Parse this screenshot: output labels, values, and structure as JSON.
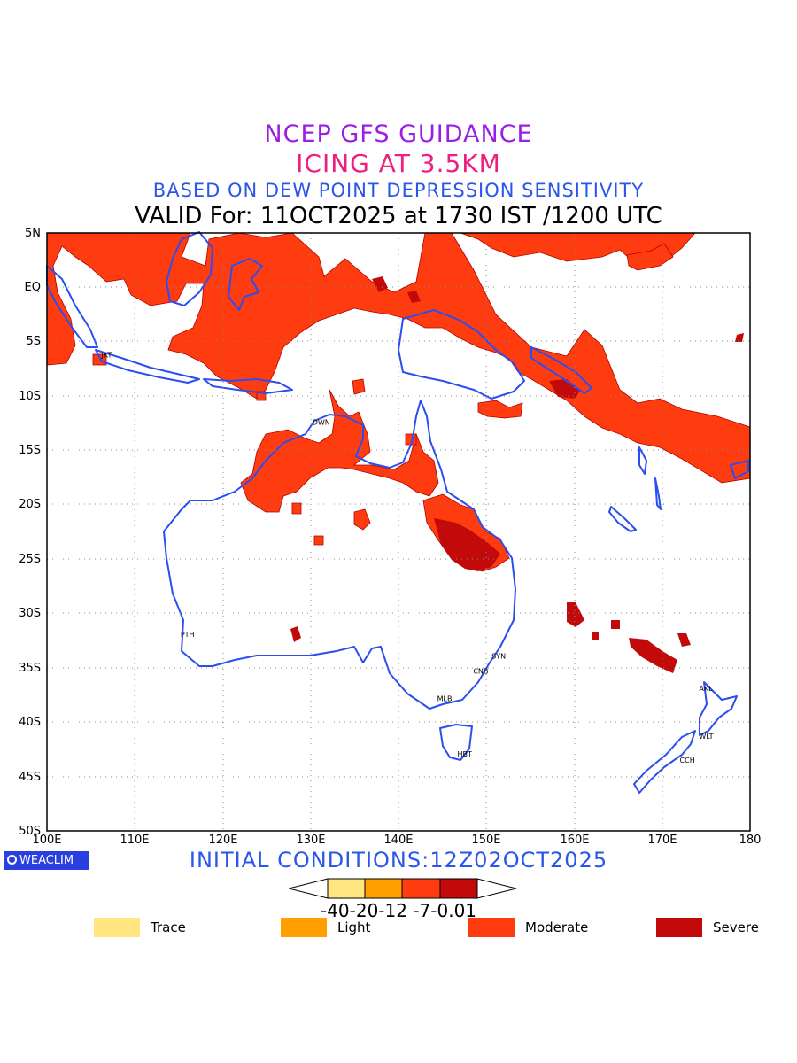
{
  "header": {
    "line1": "NCEP GFS GUIDANCE",
    "line2": "ICING AT 3.5KM",
    "line3": "BASED ON DEW POINT DEPRESSION SENSITIVITY",
    "line4": "VALID For: 11OCT2025 at 1730 IST /1200 UTC"
  },
  "colors": {
    "line1": "#9a1ee6",
    "line2": "#ee1f80",
    "line3": "#2a56ea",
    "coast": "#2a4ef0",
    "moderate": "#ff3c0f",
    "severe": "#c30a0a",
    "grid": "#888888"
  },
  "axes": {
    "lat_labels": [
      "5N",
      "EQ",
      "5S",
      "10S",
      "15S",
      "20S",
      "25S",
      "30S",
      "35S",
      "40S",
      "45S",
      "50S"
    ],
    "lon_labels": [
      "100E",
      "110E",
      "120E",
      "130E",
      "140E",
      "150E",
      "160E",
      "170E",
      "180"
    ]
  },
  "cities": [
    {
      "code": "JKT",
      "lon": 106.8,
      "lat": -6.2
    },
    {
      "code": "DWN",
      "lon": 130.8,
      "lat": -12.4
    },
    {
      "code": "PTH",
      "lon": 115.8,
      "lat": -31.9
    },
    {
      "code": "SYN",
      "lon": 151.2,
      "lat": -33.9
    },
    {
      "code": "CNB",
      "lon": 149.1,
      "lat": -35.3
    },
    {
      "code": "MLB",
      "lon": 145.0,
      "lat": -37.8
    },
    {
      "code": "HBT",
      "lon": 147.3,
      "lat": -42.9
    },
    {
      "code": "AKL",
      "lon": 174.8,
      "lat": -36.9
    },
    {
      "code": "WLT",
      "lon": 174.8,
      "lat": -41.3
    },
    {
      "code": "CCH",
      "lon": 172.6,
      "lat": -43.5
    }
  ],
  "footer": {
    "initial_conditions": "INITIAL CONDITIONS:12Z02OCT2025",
    "brand": "WEACLIM",
    "colorbar_ticks": "-40-20-12 -7-0.01"
  },
  "legend": [
    {
      "label": "Trace",
      "color": "#ffe680"
    },
    {
      "label": "Light",
      "color": "#ffa000"
    },
    {
      "label": "Moderate",
      "color": "#ff3c0f"
    },
    {
      "label": "Severe",
      "color": "#c30a0a"
    }
  ]
}
